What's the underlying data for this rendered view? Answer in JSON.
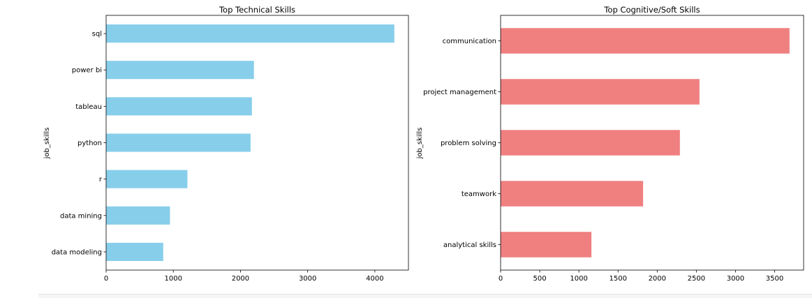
{
  "chart_data": [
    {
      "type": "bar",
      "orientation": "horizontal",
      "title": "Top Technical Skills",
      "xlabel": "",
      "ylabel": "job_skills",
      "categories": [
        "sql",
        "power bi",
        "tableau",
        "python",
        "r",
        "data mining",
        "data modeling"
      ],
      "values": [
        4290,
        2200,
        2170,
        2150,
        1210,
        950,
        850
      ],
      "xlim": [
        0,
        4500
      ],
      "xticks": [
        0,
        1000,
        2000,
        3000,
        4000
      ],
      "color": "#87ceeb",
      "grid": false,
      "legend": "none"
    },
    {
      "type": "bar",
      "orientation": "horizontal",
      "title": "Top Cognitive/Soft Skills",
      "xlabel": "",
      "ylabel": "job_skills",
      "categories": [
        "communication",
        "project management",
        "problem solving",
        "teamwork",
        "analytical skills"
      ],
      "values": [
        3690,
        2540,
        2290,
        1820,
        1160
      ],
      "xlim": [
        0,
        3870
      ],
      "xticks": [
        0,
        500,
        1000,
        1500,
        2000,
        2500,
        3000,
        3500
      ],
      "color": "#f08080",
      "grid": false,
      "legend": "none"
    }
  ]
}
